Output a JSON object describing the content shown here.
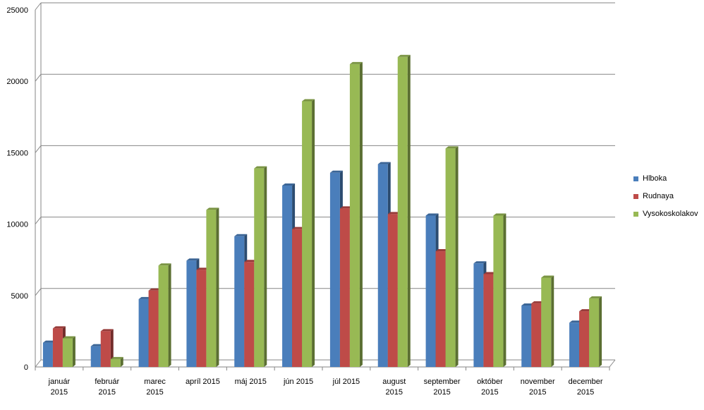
{
  "chart_data": {
    "type": "bar",
    "title": "",
    "xlabel": "",
    "ylabel": "",
    "ylim": [
      0,
      25000
    ],
    "yticks": [
      0,
      5000,
      10000,
      15000,
      20000,
      25000
    ],
    "grid": true,
    "legend_position": "right",
    "categories": [
      [
        "január",
        "2015"
      ],
      [
        "február",
        "2015"
      ],
      [
        "marec",
        "2015"
      ],
      [
        "apríl 2015"
      ],
      [
        "máj 2015"
      ],
      [
        "jún 2015"
      ],
      [
        "júl 2015"
      ],
      [
        "august",
        "2015"
      ],
      [
        "september",
        "2015"
      ],
      [
        "október",
        "2015"
      ],
      [
        "november",
        "2015"
      ],
      [
        "december",
        "2015"
      ]
    ],
    "series": [
      {
        "name": "Hlboka",
        "color": "#4a7ebb",
        "values": [
          1700,
          1450,
          4750,
          7450,
          9150,
          12700,
          13600,
          14200,
          10600,
          7250,
          4300,
          3100
        ]
      },
      {
        "name": "Rudnaya",
        "color": "#be4b48",
        "values": [
          2700,
          2500,
          5350,
          6800,
          7350,
          9650,
          11100,
          10700,
          8100,
          6500,
          4450,
          3900
        ]
      },
      {
        "name": "Vysokoskolakov",
        "color": "#98b954",
        "values": [
          2000,
          550,
          7100,
          11000,
          13900,
          18600,
          21200,
          21700,
          15300,
          10600,
          6250,
          4800
        ]
      }
    ]
  }
}
